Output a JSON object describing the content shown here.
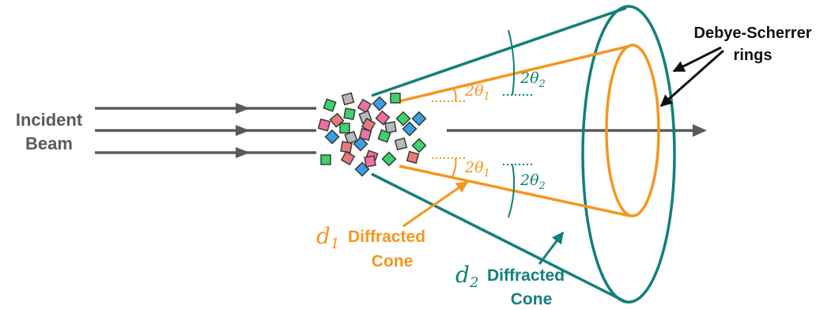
{
  "labels": {
    "incident_line1": "Incident",
    "incident_line2": "Beam",
    "rings_line1": "Debye-Scherrer",
    "rings_line2": "rings",
    "d1_var": "d",
    "d1_sub": "1",
    "d1_text1": "Diffracted",
    "d1_text2": "Cone",
    "d2_var": "d",
    "d2_sub": "2",
    "d2_text1": "Diffracted",
    "d2_text2": "Cone",
    "angle1_top": "2θ",
    "angle1_top_sub": "1",
    "angle2_top": "2θ",
    "angle2_top_sub": "2",
    "angle1_bottom": "2θ",
    "angle1_bottom_sub": "1",
    "angle2_bottom": "2θ",
    "angle2_bottom_sub": "2"
  },
  "colors": {
    "beam": "#5a5a5a",
    "cone1": "#f5961e",
    "cone2": "#137f7a",
    "arrow_black": "#111111",
    "crystal_outline": "#3a3a3a",
    "crystal_fills": [
      "#f06fa4",
      "#3fd16b",
      "#3a9ee0",
      "#b9b9b9",
      "#e97a7a"
    ]
  }
}
